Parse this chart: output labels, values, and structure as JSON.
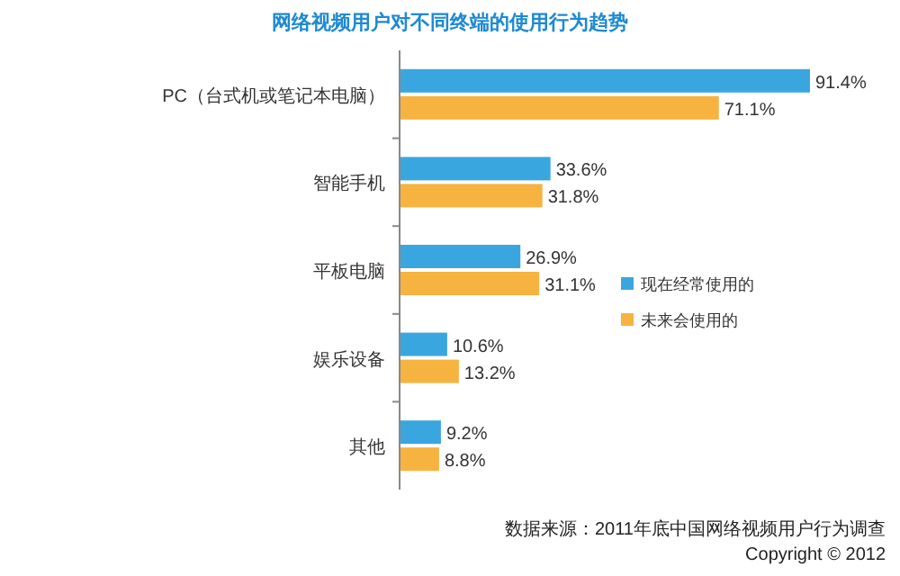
{
  "chart_data": {
    "type": "bar",
    "orientation": "horizontal",
    "title": "网络视频用户对不同终端的使用行为趋势",
    "categories": [
      "PC（台式机或笔记本电脑）",
      "智能手机",
      "平板电脑",
      "娱乐设备",
      "其他"
    ],
    "series": [
      {
        "name": "现在经常使用的",
        "color": "#3aa6e0",
        "values": [
          91.4,
          33.6,
          26.9,
          10.6,
          9.2
        ],
        "value_labels": [
          "91.4%",
          "33.6%",
          "26.9%",
          "10.6%",
          "9.2%"
        ]
      },
      {
        "name": "未来会使用的",
        "color": "#f6b33f",
        "values": [
          71.1,
          31.8,
          31.1,
          13.2,
          8.8
        ],
        "value_labels": [
          "71.1%",
          "31.8%",
          "31.1%",
          "13.2%",
          "8.8%"
        ]
      }
    ],
    "legend": "right",
    "annotations": [
      "数据来源：2011年底中国网络视频用户行为调查",
      "Copyright © 2012"
    ]
  }
}
